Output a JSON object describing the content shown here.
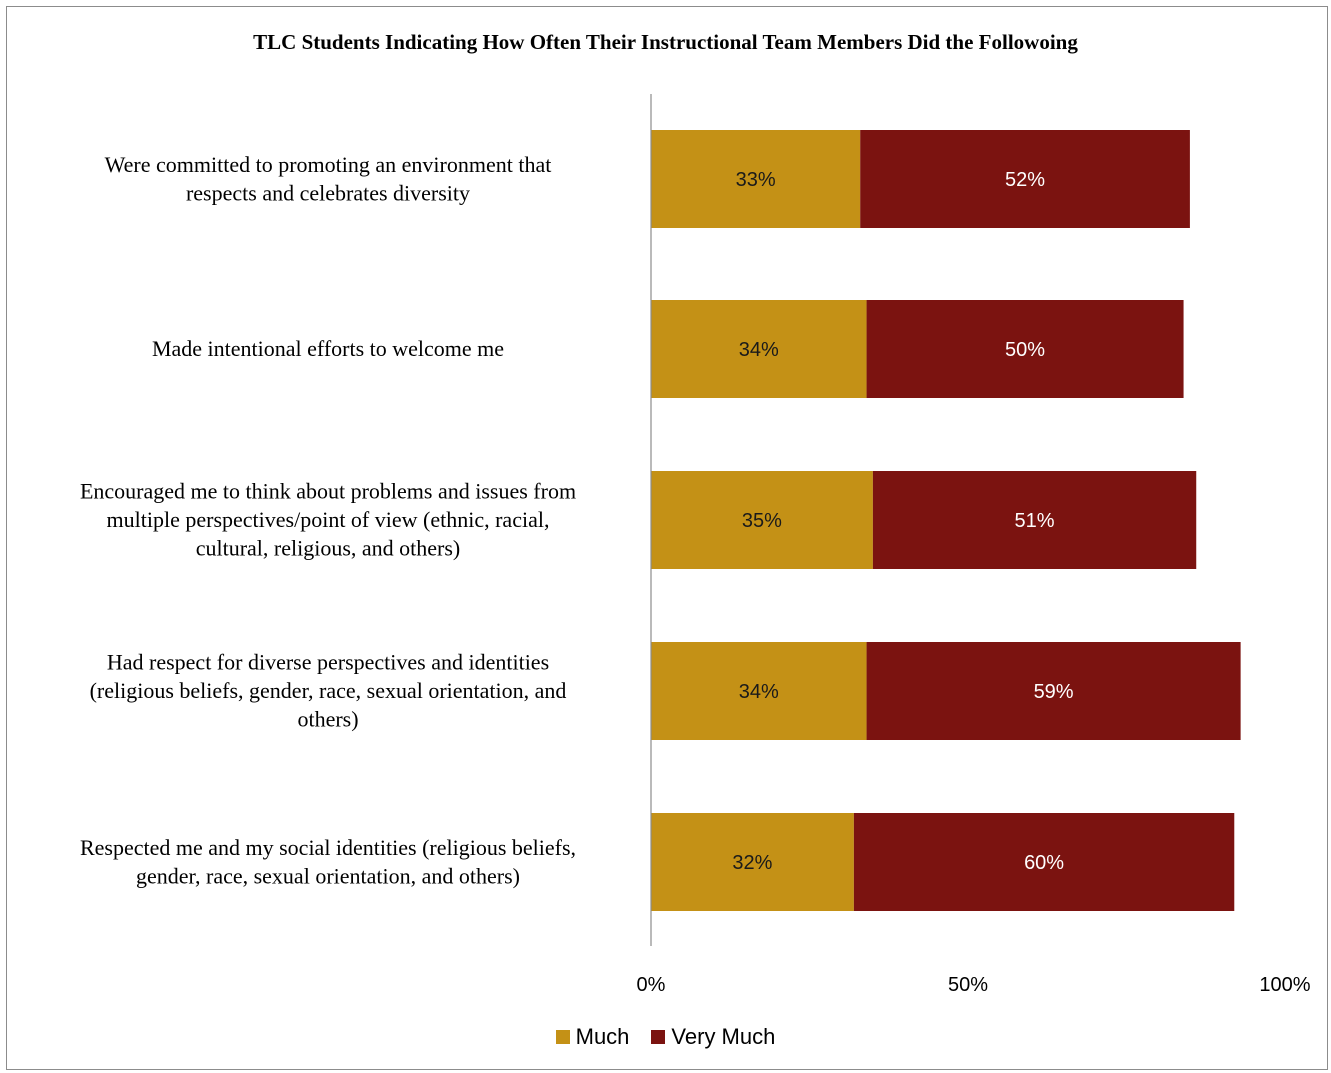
{
  "chart_data": {
    "type": "bar",
    "orientation": "horizontal",
    "stacked": true,
    "title": "TLC Students Indicating How Often Their Instructional Team Members Did the Followoing",
    "categories": [
      [
        "Were committed to promoting an environment that",
        "respects and celebrates diversity"
      ],
      [
        "Made intentional efforts to welcome me"
      ],
      [
        "Encouraged me to think about problems and issues from",
        "multiple perspectives/point of view (ethnic, racial,",
        "cultural, religious, and others)"
      ],
      [
        "Had respect for diverse perspectives and identities",
        "(religious beliefs, gender, race, sexual orientation, and",
        "others)"
      ],
      [
        "Respected me and my social identities (religious beliefs,",
        "gender, race, sexual orientation, and others)"
      ]
    ],
    "series": [
      {
        "name": "Much",
        "color": "#C49116",
        "label_color": "#1a1a1a",
        "values": [
          33,
          34,
          35,
          34,
          32
        ],
        "labels": [
          "33%",
          "34%",
          "35%",
          "34%",
          "32%"
        ]
      },
      {
        "name": "Very Much",
        "color": "#7B1310",
        "label_color": "#ffffff",
        "values": [
          52,
          50,
          51,
          59,
          60
        ],
        "labels": [
          "52%",
          "50%",
          "51%",
          "59%",
          "60%"
        ]
      }
    ],
    "xlim": [
      0,
      100
    ],
    "xticks": [
      "0%",
      "50%",
      "100%"
    ],
    "grid": false,
    "legend_position": "bottom"
  }
}
